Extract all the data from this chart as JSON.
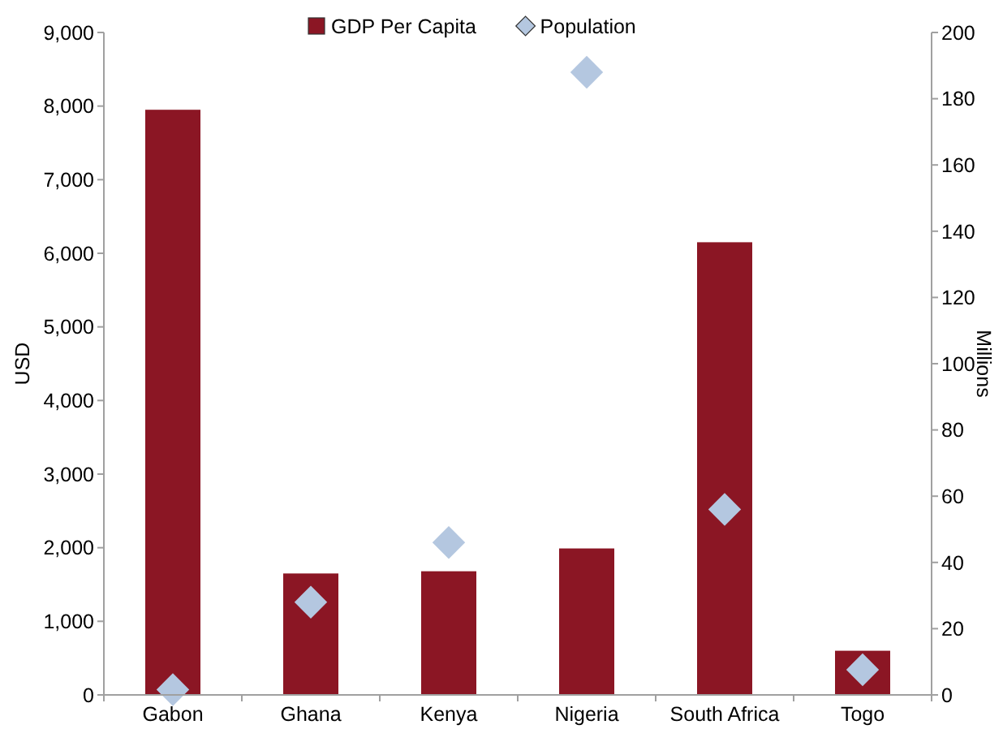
{
  "chart_data": {
    "type": "bar",
    "ylabel": "USD",
    "y2label": "Millions",
    "categories": [
      "Gabon",
      "Ghana",
      "Kenya",
      "Nigeria",
      "South Africa",
      "Togo"
    ],
    "series": [
      {
        "name": "GDP Per Capita",
        "color": "#8b1624",
        "values": [
          7950,
          1650,
          1680,
          1990,
          6150,
          600
        ]
      },
      {
        "name": "Population",
        "type": "scatter",
        "axis": "y2",
        "color": "#b4c7e0",
        "marker": "diamond",
        "values": [
          1.6,
          28,
          46,
          188,
          56,
          7.6
        ]
      }
    ],
    "ylim": [
      0,
      9000
    ],
    "yticks": [
      {
        "value": 0,
        "label": "0"
      },
      {
        "value": 1000,
        "label": "1,000"
      },
      {
        "value": 2000,
        "label": "2,000"
      },
      {
        "value": 3000,
        "label": "3,000"
      },
      {
        "value": 4000,
        "label": "4,000"
      },
      {
        "value": 5000,
        "label": "5,000"
      },
      {
        "value": 6000,
        "label": "6,000"
      },
      {
        "value": 7000,
        "label": "7,000"
      },
      {
        "value": 8000,
        "label": "8,000"
      },
      {
        "value": 9000,
        "label": "9,000"
      }
    ],
    "y2lim": [
      0,
      200
    ],
    "y2ticks": [
      0,
      20,
      40,
      60,
      80,
      100,
      120,
      140,
      160,
      180,
      200
    ],
    "grid": false,
    "legend": "top"
  }
}
